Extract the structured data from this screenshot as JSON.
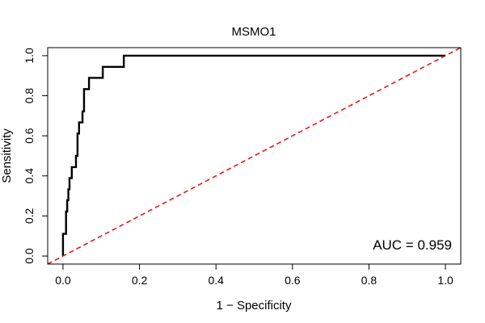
{
  "chart_data": {
    "type": "line",
    "title": "MSMO1",
    "xlabel": "1 − Specificity",
    "ylabel": "Sensitivity",
    "xlim": [
      -0.04,
      1.04
    ],
    "ylim": [
      -0.04,
      1.04
    ],
    "x_ticks": [
      0.0,
      0.2,
      0.4,
      0.6,
      0.8,
      1.0
    ],
    "x_tick_labels": [
      "0.0",
      "0.2",
      "0.4",
      "0.6",
      "0.8",
      "1.0"
    ],
    "y_ticks": [
      0.0,
      0.2,
      0.4,
      0.6,
      0.8,
      1.0
    ],
    "y_tick_labels": [
      "0.0",
      "0.2",
      "0.4",
      "0.6",
      "0.8",
      "1.0"
    ],
    "grid": false,
    "annotation": "AUC = 0.959",
    "series": [
      {
        "color": "#000000",
        "style": "solid",
        "x": [
          0.0,
          0.0,
          0.008,
          0.008,
          0.011,
          0.011,
          0.014,
          0.014,
          0.017,
          0.017,
          0.023,
          0.023,
          0.034,
          0.034,
          0.038,
          0.038,
          0.042,
          0.042,
          0.051,
          0.051,
          0.055,
          0.055,
          0.068,
          0.068,
          0.104,
          0.104,
          0.159,
          0.159,
          1.0
        ],
        "y": [
          0.0,
          0.111,
          0.111,
          0.222,
          0.222,
          0.278,
          0.278,
          0.333,
          0.333,
          0.389,
          0.389,
          0.444,
          0.444,
          0.5,
          0.5,
          0.611,
          0.611,
          0.667,
          0.667,
          0.722,
          0.722,
          0.833,
          0.833,
          0.889,
          0.889,
          0.944,
          0.944,
          1.0,
          1.0
        ]
      },
      {
        "color": "#e41a1c",
        "style": "dashed",
        "x": [
          -0.04,
          1.04
        ],
        "y": [
          -0.04,
          1.04
        ]
      }
    ]
  }
}
